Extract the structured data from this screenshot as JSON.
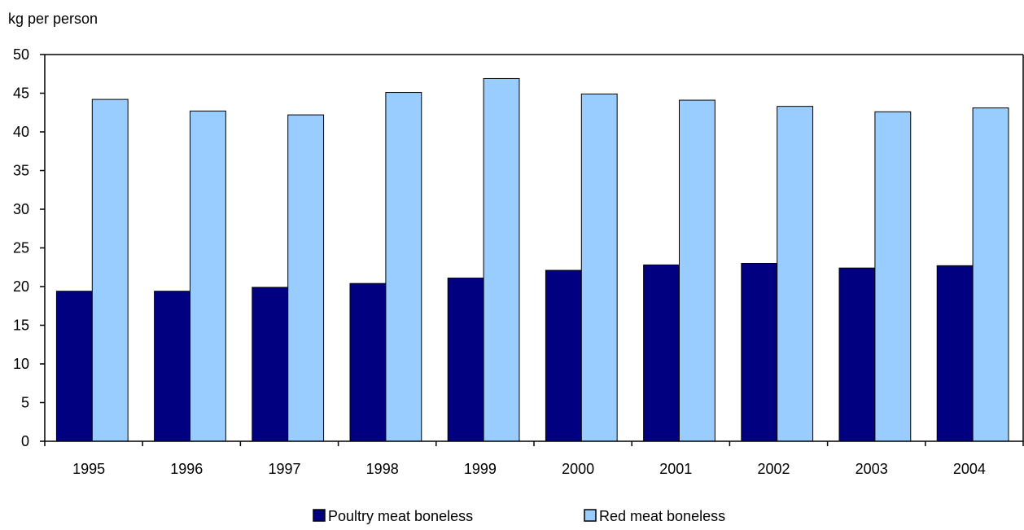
{
  "chart_data": {
    "type": "bar",
    "title": "",
    "ylabel": "kg per person",
    "xlabel": "",
    "categories": [
      "1995",
      "1996",
      "1997",
      "1998",
      "1999",
      "2000",
      "2001",
      "2002",
      "2003",
      "2004"
    ],
    "series": [
      {
        "name": "Poultry meat boneless",
        "color": "#000080",
        "values": [
          19.4,
          19.4,
          19.9,
          20.4,
          21.1,
          22.1,
          22.8,
          23.0,
          22.4,
          22.7
        ]
      },
      {
        "name": "Red meat boneless",
        "color": "#99ccff",
        "values": [
          44.2,
          42.7,
          42.2,
          45.1,
          46.9,
          44.9,
          44.1,
          43.3,
          42.6,
          43.1
        ]
      }
    ],
    "ylim": [
      0,
      50
    ],
    "yticks": [
      0,
      5,
      10,
      15,
      20,
      25,
      30,
      35,
      40,
      45,
      50
    ],
    "grid": false,
    "legend_position": "bottom"
  }
}
